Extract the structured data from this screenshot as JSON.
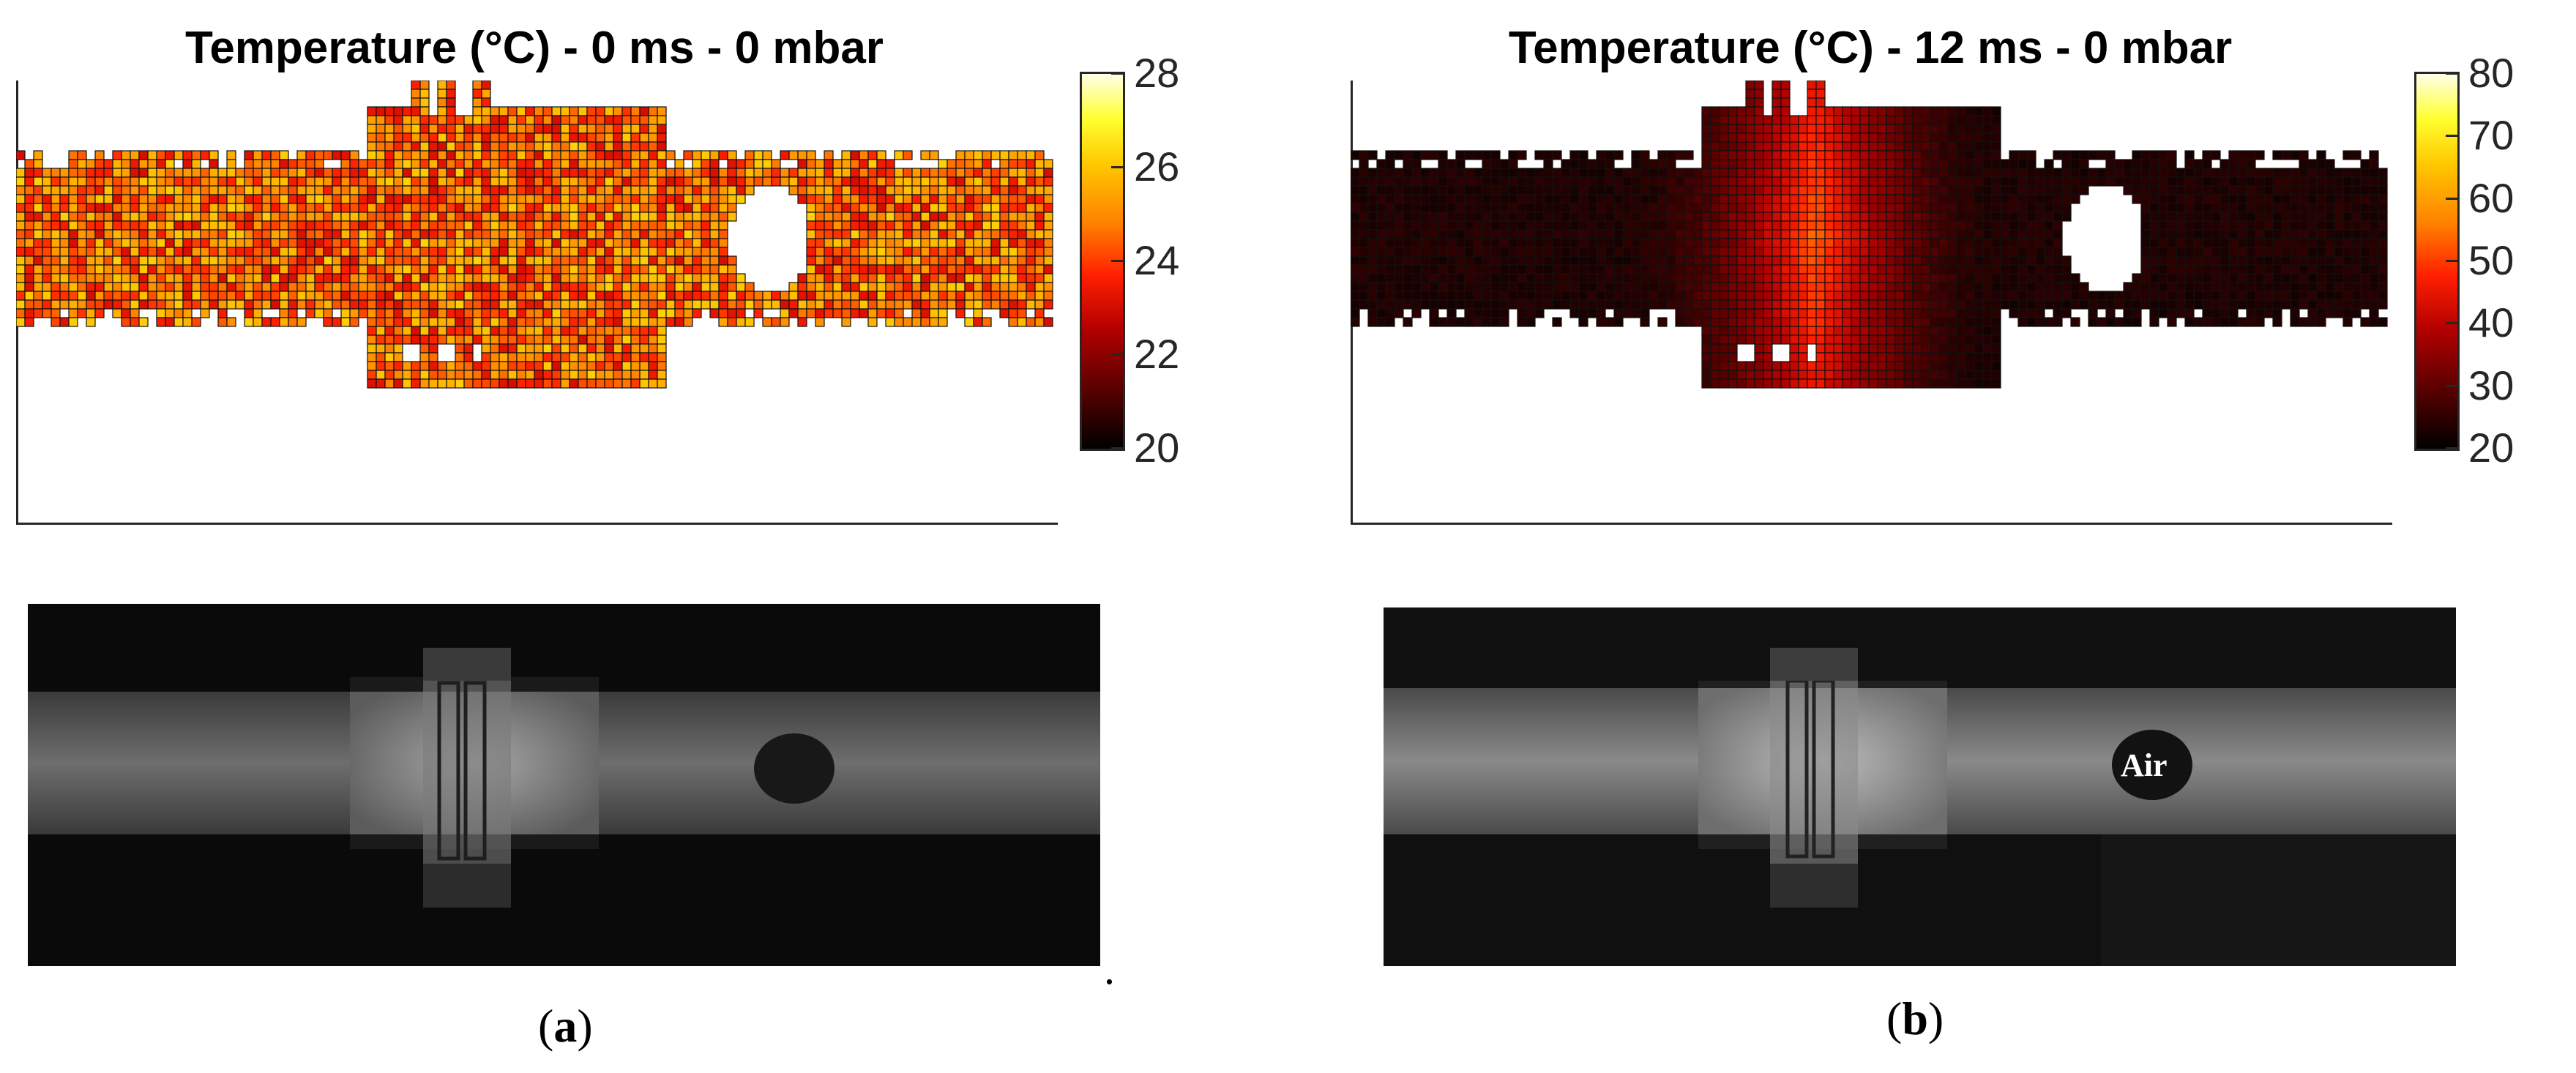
{
  "chart_data": [
    {
      "type": "heatmap",
      "panel": "a",
      "title": "Temperature (°C) - 0 ms - 0 mbar",
      "colorbar": {
        "min": 20,
        "max": 28,
        "ticks": [
          "20",
          "22",
          "24",
          "26",
          "28"
        ]
      },
      "grid": false,
      "legend": "colorbar-right"
    },
    {
      "type": "heatmap",
      "panel": "b",
      "title": "Temperature (°C) - 12 ms - 0 mbar",
      "colorbar": {
        "min": 20,
        "max": 80,
        "ticks": [
          "20",
          "30",
          "40",
          "50",
          "60",
          "70",
          "80"
        ]
      },
      "grid": false,
      "legend": "colorbar-right"
    }
  ],
  "images": {
    "a": {
      "description_labels": []
    },
    "b": {
      "labels": [
        "Air"
      ]
    }
  },
  "captions": {
    "a": {
      "open": "(",
      "letter": "a",
      "close": ")"
    },
    "b": {
      "open": "(",
      "letter": "b",
      "close": ")"
    },
    "separator": "."
  }
}
